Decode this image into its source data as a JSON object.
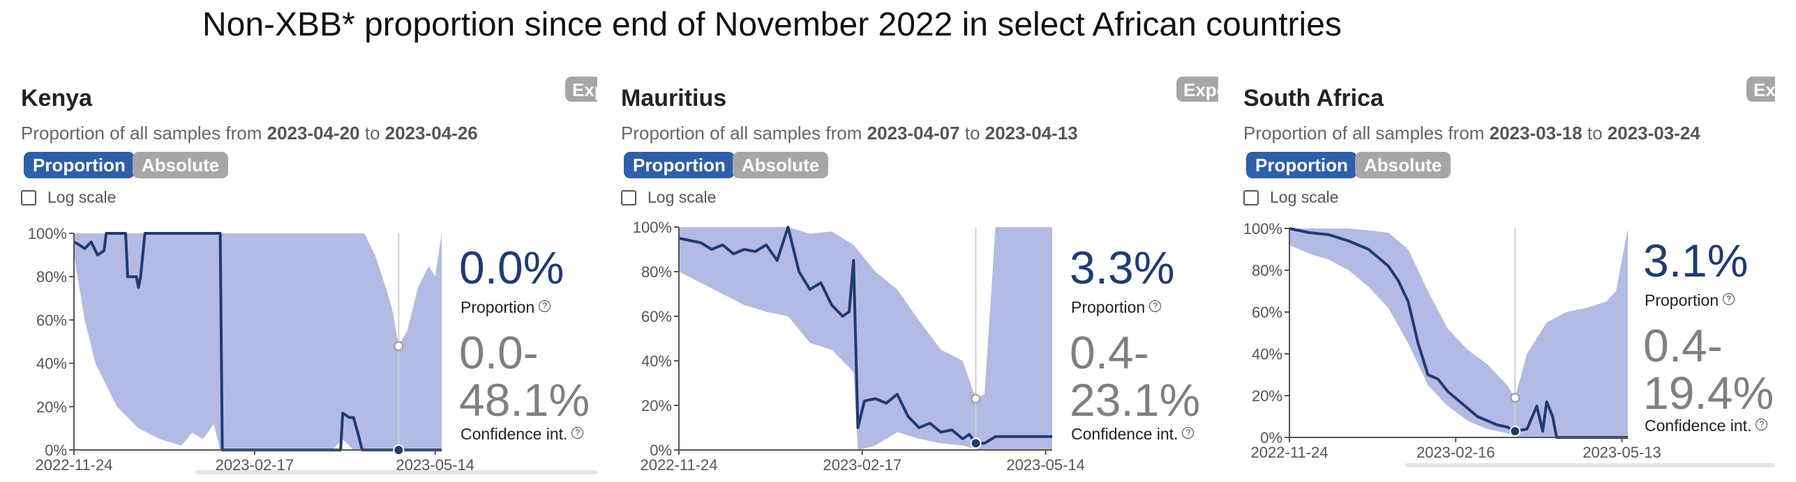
{
  "title": "Non-XBB* proportion since end of November 2022 in select African countries",
  "labels": {
    "subtitle_prefix": "Proportion of all samples from",
    "subtitle_to": "to",
    "proportion_button": "Proportion",
    "absolute_button": "Absolute",
    "log_scale": "Log scale",
    "proportion_label": "Proportion",
    "confidence_label": "Confidence int.",
    "export_button": "Export"
  },
  "colors": {
    "line": "#1f3b73",
    "band": "#b3bae3",
    "primary_button": "#2e5fa8",
    "secondary_button": "#a6a6a6",
    "ci_text": "#808080"
  },
  "panels": [
    {
      "country": "Kenya",
      "date_from": "2023-04-20",
      "date_to": "2023-04-26",
      "proportion": "0.0%",
      "ci_low": "0.0-",
      "ci_high": "48.1%"
    },
    {
      "country": "Mauritius",
      "date_from": "2023-04-07",
      "date_to": "2023-04-13",
      "proportion": "3.3%",
      "ci_low": "0.4-",
      "ci_high": "23.1%"
    },
    {
      "country": "South Africa",
      "date_from": "2023-03-18",
      "date_to": "2023-03-24",
      "proportion": "3.1%",
      "ci_low": "0.4-",
      "ci_high": "19.4%"
    }
  ],
  "chart_data": [
    {
      "type": "area",
      "title": "Kenya",
      "ylabel": "Proportion",
      "ylim": [
        0,
        100
      ],
      "y_ticks": [
        "0%",
        "20%",
        "40%",
        "60%",
        "80%",
        "100%"
      ],
      "x_ticks": [
        "2022-11-24",
        "2023-02-17",
        "2023-05-14"
      ],
      "x_range_days": [
        0,
        171
      ],
      "highlight_day": 151,
      "series": [
        {
          "name": "Proportion",
          "x": [
            0,
            2,
            5,
            8,
            11,
            14,
            15,
            24,
            25,
            29,
            30,
            31,
            33,
            36,
            55,
            68,
            69,
            124,
            125,
            128,
            130,
            132,
            134,
            171
          ],
          "y": [
            96,
            95,
            93,
            96,
            90,
            92,
            100,
            100,
            80,
            80,
            75,
            80,
            100,
            100,
            100,
            100,
            0,
            0,
            17,
            15,
            15,
            8,
            0,
            0
          ]
        },
        {
          "name": "CI upper",
          "x": [
            0,
            30,
            60,
            100,
            135,
            140,
            145,
            148,
            151,
            155,
            160,
            165,
            168,
            171
          ],
          "y": [
            100,
            100,
            100,
            100,
            100,
            90,
            75,
            65,
            48,
            55,
            75,
            85,
            80,
            100
          ]
        },
        {
          "name": "CI lower",
          "x": [
            0,
            5,
            10,
            15,
            20,
            30,
            40,
            50,
            55,
            60,
            65,
            68,
            100,
            120,
            125,
            130,
            135,
            171
          ],
          "y": [
            90,
            60,
            40,
            30,
            20,
            10,
            5,
            2,
            8,
            5,
            12,
            0,
            0,
            0,
            5,
            0,
            0,
            0
          ]
        }
      ]
    },
    {
      "type": "area",
      "title": "Mauritius",
      "ylabel": "Proportion",
      "ylim": [
        0,
        100
      ],
      "y_ticks": [
        "0%",
        "20%",
        "40%",
        "60%",
        "80%",
        "100%"
      ],
      "x_ticks": [
        "2022-11-24",
        "2023-02-17",
        "2023-05-14"
      ],
      "x_range_days": [
        0,
        171
      ],
      "highlight_day": 136,
      "series": [
        {
          "name": "Proportion",
          "x": [
            0,
            10,
            15,
            20,
            25,
            30,
            35,
            40,
            45,
            50,
            55,
            60,
            65,
            70,
            75,
            78,
            80,
            82,
            85,
            90,
            95,
            100,
            105,
            110,
            115,
            120,
            125,
            130,
            133,
            136,
            140,
            145,
            171
          ],
          "y": [
            95,
            93,
            90,
            92,
            88,
            90,
            89,
            92,
            85,
            100,
            80,
            72,
            75,
            65,
            60,
            62,
            85,
            10,
            22,
            23,
            21,
            25,
            15,
            10,
            12,
            8,
            9,
            5,
            7,
            3,
            3,
            6,
            6
          ]
        },
        {
          "name": "CI upper",
          "x": [
            0,
            20,
            40,
            50,
            60,
            70,
            80,
            90,
            100,
            110,
            120,
            130,
            136,
            140,
            145,
            150,
            171
          ],
          "y": [
            100,
            100,
            100,
            100,
            97,
            98,
            92,
            80,
            72,
            58,
            45,
            40,
            23,
            25,
            100,
            100,
            100
          ]
        },
        {
          "name": "CI lower",
          "x": [
            0,
            10,
            20,
            30,
            40,
            50,
            60,
            70,
            80,
            82,
            90,
            100,
            110,
            120,
            130,
            136,
            140,
            145,
            171
          ],
          "y": [
            80,
            75,
            70,
            65,
            62,
            60,
            48,
            45,
            35,
            0,
            2,
            8,
            5,
            3,
            2,
            0.4,
            0,
            0,
            0
          ]
        }
      ]
    },
    {
      "type": "area",
      "title": "South Africa",
      "ylabel": "Proportion",
      "ylim": [
        0,
        100
      ],
      "y_ticks": [
        "0%",
        "20%",
        "40%",
        "60%",
        "80%",
        "100%"
      ],
      "x_ticks": [
        "2022-11-24",
        "2023-02-16",
        "2023-05-13"
      ],
      "x_range_days": [
        0,
        171
      ],
      "highlight_day": 114,
      "series": [
        {
          "name": "Proportion",
          "x": [
            0,
            10,
            20,
            30,
            40,
            50,
            55,
            60,
            65,
            70,
            75,
            80,
            85,
            90,
            95,
            100,
            105,
            110,
            114,
            120,
            125,
            128,
            130,
            133,
            135,
            140,
            171
          ],
          "y": [
            100,
            98,
            97,
            94,
            90,
            82,
            75,
            65,
            45,
            30,
            28,
            22,
            18,
            14,
            10,
            8,
            6,
            5,
            3,
            4,
            15,
            3,
            17,
            10,
            0,
            0,
            0
          ]
        },
        {
          "name": "CI upper",
          "x": [
            0,
            30,
            50,
            60,
            70,
            80,
            90,
            100,
            105,
            110,
            114,
            120,
            130,
            140,
            150,
            160,
            165,
            171
          ],
          "y": [
            100,
            100,
            98,
            90,
            70,
            52,
            42,
            35,
            30,
            25,
            19,
            40,
            55,
            60,
            62,
            65,
            70,
            100
          ]
        },
        {
          "name": "CI lower",
          "x": [
            0,
            10,
            20,
            30,
            40,
            50,
            60,
            70,
            80,
            90,
            100,
            110,
            114,
            120,
            130,
            171
          ],
          "y": [
            92,
            88,
            85,
            80,
            72,
            62,
            45,
            25,
            15,
            8,
            4,
            2,
            0.4,
            0,
            0,
            0
          ]
        }
      ]
    }
  ]
}
